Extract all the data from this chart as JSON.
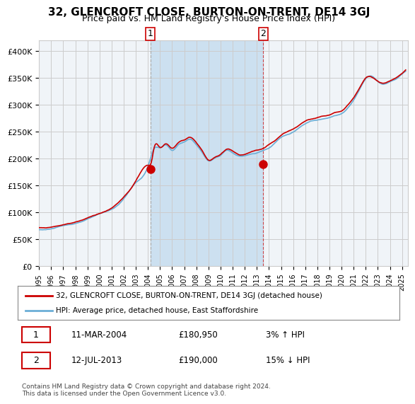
{
  "title": "32, GLENCROFT CLOSE, BURTON-ON-TRENT, DE14 3GJ",
  "subtitle": "Price paid vs. HM Land Registry's House Price Index (HPI)",
  "legend_line1": "32, GLENCROFT CLOSE, BURTON-ON-TRENT, DE14 3GJ (detached house)",
  "legend_line2": "HPI: Average price, detached house, East Staffordshire",
  "transaction1_label": "1",
  "transaction1_date": "11-MAR-2004",
  "transaction1_price": "£180,950",
  "transaction1_hpi": "3% ↑ HPI",
  "transaction1_date_num": 2004.19,
  "transaction1_price_val": 180950,
  "transaction2_label": "2",
  "transaction2_date": "12-JUL-2013",
  "transaction2_price": "£190,000",
  "transaction2_hpi": "15% ↓ HPI",
  "transaction2_date_num": 2013.53,
  "transaction2_price_val": 190000,
  "hpi_color": "#6baed6",
  "price_color": "#cc0000",
  "background_color": "#ffffff",
  "plot_bg_color": "#f0f4f8",
  "shaded_region_color": "#cce0f0",
  "grid_color": "#cccccc",
  "footnote": "Contains HM Land Registry data © Crown copyright and database right 2024.\nThis data is licensed under the Open Government Licence v3.0.",
  "ylim": [
    0,
    420000
  ],
  "yticks": [
    0,
    50000,
    100000,
    150000,
    200000,
    250000,
    300000,
    350000,
    400000
  ],
  "ytick_labels": [
    "£0",
    "£50K",
    "£100K",
    "£150K",
    "£200K",
    "£250K",
    "£300K",
    "£350K",
    "£400K"
  ],
  "xlim_start": 1995.0,
  "xlim_end": 2025.5
}
